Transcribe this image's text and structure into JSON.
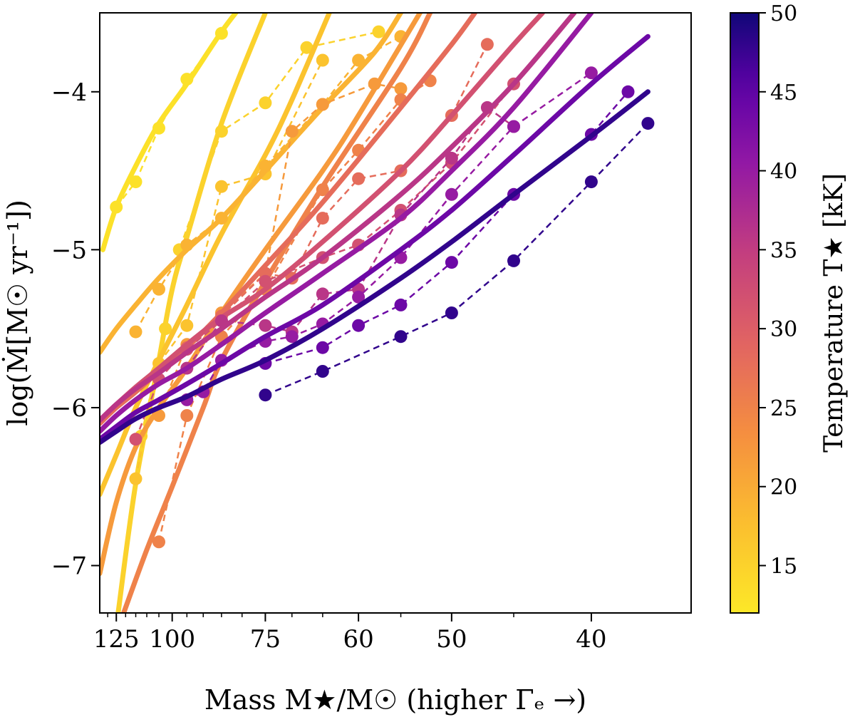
{
  "chart_data": {
    "type": "line",
    "xlabel": "Mass M★/M☉ (higher Γₑ →)",
    "ylabel": "log(Ṁ[M☉ yr⁻¹])",
    "x_scale": "reciprocal",
    "x_direction": "decreasing",
    "xlim": [
      135,
      35
    ],
    "ylim": [
      -7.3,
      -3.5
    ],
    "xticks": [
      125,
      100,
      75,
      60,
      50,
      40
    ],
    "xtick_labels": [
      "125",
      "100",
      "75",
      "60",
      "50",
      "40"
    ],
    "yticks": [
      -7,
      -6,
      -5,
      -4
    ],
    "ytick_labels": [
      "−7",
      "−6",
      "−5",
      "−4"
    ],
    "grid": false,
    "colorbar": {
      "label": "Temperature T★ [kK]",
      "colormap": "plasma (reversed: yellow low, indigo high)",
      "range": [
        12,
        50
      ],
      "ticks": [
        15,
        20,
        25,
        30,
        35,
        40,
        45,
        50
      ],
      "tick_labels": [
        "15",
        "20",
        "25",
        "30",
        "35",
        "40",
        "45",
        "50"
      ],
      "placement": "right"
    },
    "series": [
      {
        "temperature_kK": 13,
        "fit_line": [
          [
            133,
            -5.0
          ],
          [
            125,
            -4.73
          ],
          [
            115,
            -4.47
          ],
          [
            105,
            -4.2
          ],
          [
            95,
            -3.95
          ],
          [
            85,
            -3.62
          ],
          [
            80,
            -3.45
          ]
        ],
        "points": [
          [
            125,
            -4.73
          ],
          [
            115,
            -4.57
          ],
          [
            105,
            -4.23
          ],
          [
            95,
            -3.92
          ],
          [
            85,
            -3.63
          ]
        ]
      },
      {
        "temperature_kK": 15,
        "fit_line": [
          [
            124,
            -7.3
          ],
          [
            115,
            -6.48
          ],
          [
            105,
            -5.7
          ],
          [
            100,
            -5.25
          ],
          [
            95,
            -4.92
          ],
          [
            85,
            -4.2
          ],
          [
            75,
            -3.5
          ]
        ],
        "points": [
          [
            112.5,
            -6.18
          ],
          [
            102.5,
            -5.5
          ],
          [
            97.5,
            -5.0
          ],
          [
            85,
            -4.25
          ],
          [
            75,
            -4.07
          ],
          [
            67.5,
            -3.72
          ],
          [
            57.5,
            -3.62
          ]
        ]
      },
      {
        "temperature_kK": 17,
        "fit_line": [
          [
            135,
            -6.55
          ],
          [
            125,
            -6.3
          ],
          [
            115,
            -6.0
          ],
          [
            105,
            -5.7
          ],
          [
            95,
            -5.35
          ],
          [
            85,
            -4.9
          ],
          [
            75,
            -4.4
          ],
          [
            70,
            -4.05
          ],
          [
            64,
            -3.5
          ]
        ],
        "points": [
          [
            115,
            -6.45
          ],
          [
            105,
            -5.72
          ],
          [
            95,
            -5.48
          ],
          [
            85,
            -4.6
          ],
          [
            75,
            -4.52
          ],
          [
            65,
            -3.8
          ]
        ]
      },
      {
        "temperature_kK": 19,
        "fit_line": [
          [
            135,
            -5.65
          ],
          [
            125,
            -5.5
          ],
          [
            115,
            -5.35
          ],
          [
            105,
            -5.18
          ],
          [
            95,
            -5.0
          ],
          [
            85,
            -4.8
          ],
          [
            75,
            -4.5
          ],
          [
            65,
            -4.1
          ],
          [
            58,
            -3.75
          ],
          [
            55,
            -3.5
          ]
        ],
        "points": [
          [
            115,
            -5.52
          ],
          [
            105,
            -5.25
          ],
          [
            95,
            -4.97
          ],
          [
            85,
            -4.8
          ],
          [
            75,
            -4.47
          ],
          [
            65,
            -4.08
          ],
          [
            60,
            -3.8
          ],
          [
            55,
            -3.65
          ]
        ]
      },
      {
        "temperature_kK": 22,
        "fit_line": [
          [
            135,
            -7.05
          ],
          [
            125,
            -6.6
          ],
          [
            115,
            -6.25
          ],
          [
            105,
            -6.0
          ],
          [
            95,
            -5.75
          ],
          [
            85,
            -5.4
          ],
          [
            75,
            -5.0
          ],
          [
            65,
            -4.5
          ],
          [
            60,
            -4.15
          ],
          [
            53,
            -3.5
          ]
        ],
        "points": [
          [
            105,
            -6.05
          ],
          [
            95,
            -5.6
          ],
          [
            85,
            -5.4
          ],
          [
            75,
            -5.15
          ],
          [
            70,
            -4.25
          ],
          [
            65,
            -4.08
          ],
          [
            58,
            -3.95
          ],
          [
            55,
            -3.98
          ]
        ]
      },
      {
        "temperature_kK": 25,
        "fit_line": [
          [
            121,
            -7.3
          ],
          [
            110,
            -6.9
          ],
          [
            100,
            -6.5
          ],
          [
            90,
            -6.0
          ],
          [
            85,
            -5.7
          ],
          [
            75,
            -5.2
          ],
          [
            65,
            -4.6
          ],
          [
            55,
            -3.85
          ],
          [
            52,
            -3.5
          ]
        ],
        "points": [
          [
            105,
            -6.85
          ],
          [
            95,
            -6.05
          ],
          [
            85,
            -5.55
          ],
          [
            75,
            -5.25
          ],
          [
            65,
            -4.62
          ],
          [
            60,
            -4.37
          ],
          [
            55,
            -4.05
          ],
          [
            52,
            -3.93
          ]
        ]
      },
      {
        "temperature_kK": 28,
        "fit_line": [
          [
            135,
            -6.1
          ],
          [
            125,
            -6.0
          ],
          [
            115,
            -5.9
          ],
          [
            105,
            -5.77
          ],
          [
            95,
            -5.62
          ],
          [
            85,
            -5.4
          ],
          [
            75,
            -5.1
          ],
          [
            65,
            -4.7
          ],
          [
            55,
            -4.1
          ],
          [
            50,
            -3.7
          ],
          [
            48,
            -3.5
          ]
        ],
        "points": [
          [
            95,
            -5.62
          ],
          [
            85,
            -5.42
          ],
          [
            75,
            -5.15
          ],
          [
            70,
            -5.18
          ],
          [
            65,
            -4.8
          ],
          [
            60,
            -4.55
          ],
          [
            55,
            -4.5
          ],
          [
            50,
            -4.15
          ],
          [
            47,
            -3.7
          ]
        ]
      },
      {
        "temperature_kK": 32,
        "fit_line": [
          [
            135,
            -6.08
          ],
          [
            125,
            -5.98
          ],
          [
            115,
            -5.87
          ],
          [
            105,
            -5.75
          ],
          [
            95,
            -5.6
          ],
          [
            85,
            -5.43
          ],
          [
            75,
            -5.25
          ],
          [
            65,
            -4.95
          ],
          [
            55,
            -4.5
          ],
          [
            50,
            -4.15
          ],
          [
            45,
            -3.7
          ],
          [
            43,
            -3.5
          ]
        ],
        "points": [
          [
            115,
            -6.2
          ],
          [
            105,
            -5.82
          ],
          [
            95,
            -5.63
          ],
          [
            85,
            -5.45
          ],
          [
            75,
            -5.2
          ],
          [
            65,
            -5.05
          ],
          [
            60,
            -4.97
          ],
          [
            55,
            -4.75
          ],
          [
            50,
            -4.45
          ],
          [
            45,
            -3.95
          ]
        ]
      },
      {
        "temperature_kK": 36,
        "fit_line": [
          [
            135,
            -6.08
          ],
          [
            125,
            -5.98
          ],
          [
            115,
            -5.88
          ],
          [
            105,
            -5.78
          ],
          [
            95,
            -5.65
          ],
          [
            85,
            -5.5
          ],
          [
            75,
            -5.3
          ],
          [
            65,
            -5.05
          ],
          [
            55,
            -4.65
          ],
          [
            50,
            -4.35
          ],
          [
            45,
            -3.95
          ],
          [
            41,
            -3.5
          ]
        ],
        "points": [
          [
            95,
            -5.75
          ],
          [
            85,
            -5.45
          ],
          [
            75,
            -5.48
          ],
          [
            70,
            -5.52
          ],
          [
            65,
            -5.28
          ],
          [
            60,
            -5.25
          ],
          [
            55,
            -4.78
          ],
          [
            50,
            -4.42
          ],
          [
            47,
            -4.1
          ],
          [
            45,
            -4.22
          ]
        ]
      },
      {
        "temperature_kK": 40,
        "fit_line": [
          [
            135,
            -6.15
          ],
          [
            125,
            -6.05
          ],
          [
            115,
            -5.95
          ],
          [
            105,
            -5.85
          ],
          [
            95,
            -5.75
          ],
          [
            85,
            -5.6
          ],
          [
            75,
            -5.4
          ],
          [
            65,
            -5.15
          ],
          [
            55,
            -4.8
          ],
          [
            50,
            -4.5
          ],
          [
            45,
            -4.1
          ],
          [
            40,
            -3.5
          ]
        ],
        "points": [
          [
            95,
            -5.95
          ],
          [
            90,
            -5.9
          ],
          [
            85,
            -5.7
          ],
          [
            75,
            -5.58
          ],
          [
            70,
            -5.55
          ],
          [
            65,
            -5.47
          ],
          [
            60,
            -5.3
          ],
          [
            55,
            -5.05
          ],
          [
            50,
            -4.65
          ],
          [
            45,
            -4.22
          ],
          [
            40,
            -3.88
          ]
        ]
      },
      {
        "temperature_kK": 44,
        "fit_line": [
          [
            135,
            -6.2
          ],
          [
            125,
            -6.12
          ],
          [
            115,
            -6.03
          ],
          [
            105,
            -5.95
          ],
          [
            95,
            -5.85
          ],
          [
            85,
            -5.72
          ],
          [
            75,
            -5.55
          ],
          [
            65,
            -5.35
          ],
          [
            55,
            -5.0
          ],
          [
            50,
            -4.75
          ],
          [
            45,
            -4.4
          ],
          [
            40,
            -3.95
          ],
          [
            37,
            -3.65
          ]
        ],
        "points": [
          [
            75,
            -5.72
          ],
          [
            65,
            -5.62
          ],
          [
            60,
            -5.48
          ],
          [
            55,
            -5.35
          ],
          [
            50,
            -5.08
          ],
          [
            45,
            -4.65
          ],
          [
            40,
            -4.27
          ],
          [
            38,
            -4.0
          ]
        ]
      },
      {
        "temperature_kK": 48,
        "fit_line": [
          [
            135,
            -6.22
          ],
          [
            125,
            -6.15
          ],
          [
            115,
            -6.07
          ],
          [
            105,
            -6.0
          ],
          [
            95,
            -5.93
          ],
          [
            85,
            -5.82
          ],
          [
            75,
            -5.7
          ],
          [
            65,
            -5.5
          ],
          [
            55,
            -5.18
          ],
          [
            50,
            -4.95
          ],
          [
            45,
            -4.65
          ],
          [
            40,
            -4.28
          ],
          [
            37,
            -4.0
          ]
        ],
        "points": [
          [
            75,
            -5.92
          ],
          [
            65,
            -5.77
          ],
          [
            55,
            -5.55
          ],
          [
            50,
            -5.4
          ],
          [
            45,
            -5.07
          ],
          [
            40,
            -4.57
          ],
          [
            37,
            -4.2
          ]
        ]
      }
    ]
  }
}
